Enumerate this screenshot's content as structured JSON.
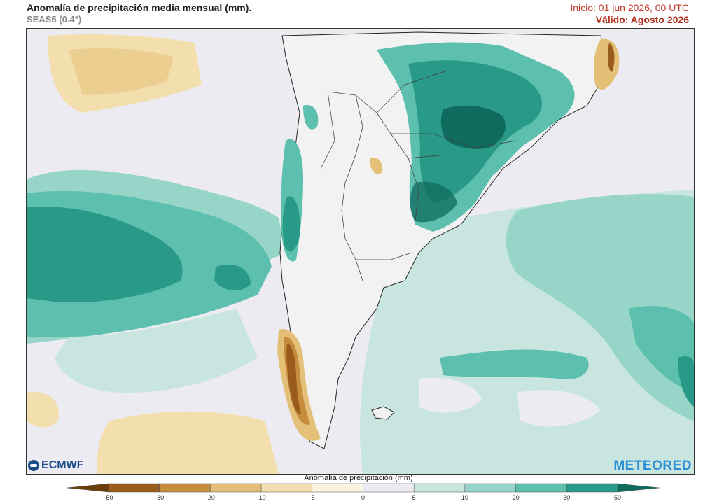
{
  "header": {
    "title": "Anomalía de precipitación media mensual (mm).",
    "subtitle": "SEAS5 (0.4°)",
    "init": "Inicio: 01 jun 2026, 00 UTC",
    "valid": "Válido: Agosto 2026"
  },
  "logos": {
    "left": "ECMWF",
    "right": "METEORED"
  },
  "legend": {
    "title": "Anomalía de precipitación (mm)",
    "ticks": [
      "-50",
      "-30",
      "-20",
      "-10",
      "-5",
      "0",
      "5",
      "10",
      "20",
      "30",
      "50"
    ],
    "colors": [
      "#6b3d0a",
      "#9a5c1c",
      "#c78d3e",
      "#e3bf78",
      "#f3dfae",
      "#fbf4e2",
      "#ecebf1",
      "#c8e6df",
      "#97d5c8",
      "#5dbfae",
      "#2a9a88",
      "#0f6b5e"
    ]
  },
  "map_colors": {
    "ocean": "#ecebf1",
    "land": "#f2f2f2",
    "wet1": "#c8e6df",
    "wet2": "#97d5c8",
    "wet3": "#5dbfae",
    "wet4": "#2a9a88",
    "wet5": "#0f6b5e",
    "dry1": "#f3dfae",
    "dry2": "#e3bf78",
    "dry3": "#c78d3e",
    "dry4": "#9a5c1c"
  }
}
